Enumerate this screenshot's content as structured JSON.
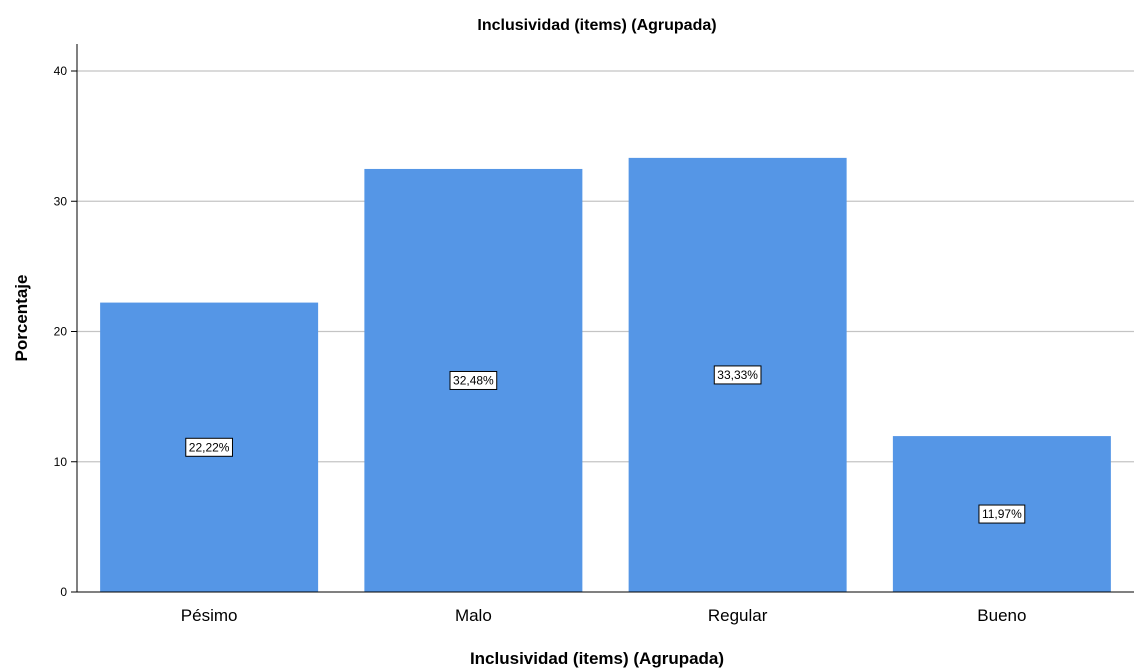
{
  "chart_data": {
    "type": "bar",
    "title": "Inclusividad (items) (Agrupada)",
    "xlabel": "Inclusividad (items) (Agrupada)",
    "ylabel": "Porcentaje",
    "categories": [
      "Pésimo",
      "Malo",
      "Regular",
      "Bueno"
    ],
    "values": [
      22.22,
      32.48,
      33.33,
      11.97
    ],
    "data_labels": [
      "22,22%",
      "32,48%",
      "33,33%",
      "11,97%"
    ],
    "ylim": [
      0,
      40
    ],
    "yticks": [
      0,
      10,
      20,
      30,
      40
    ],
    "grid": true,
    "bar_color": "#5596e6",
    "legend": "none"
  }
}
